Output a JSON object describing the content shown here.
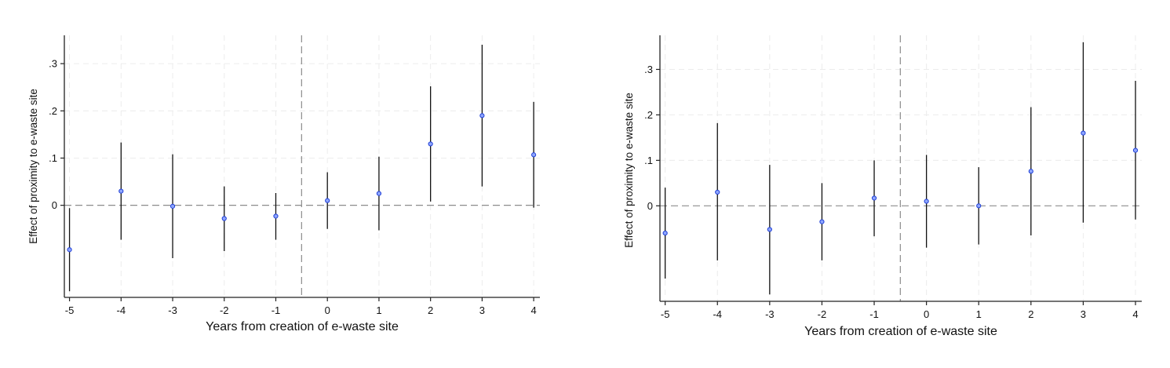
{
  "chart_data": [
    {
      "type": "scatter",
      "chart_subtype": "coefficient plot with 95% confidence intervals",
      "xlabel": "Years from creation of e-waste site",
      "ylabel": "Effect of proximity to e-waste site",
      "x_ticks": [
        "-5",
        "-4",
        "-3",
        "-2",
        "-1",
        "0",
        "1",
        "2",
        "3",
        "4"
      ],
      "y_ticks": [
        {
          "value": 0,
          "label": "0"
        },
        {
          "value": 0.1,
          "label": ".1"
        },
        {
          "value": 0.2,
          "label": ".2"
        },
        {
          "value": 0.3,
          "label": ".3"
        }
      ],
      "xlim": [
        -5.1,
        4.12
      ],
      "ylim": [
        -0.195,
        0.36
      ],
      "reference_line_y": 0,
      "event_line_x": -0.5,
      "grid": true,
      "marker_color": "#1f3fd6",
      "points": [
        {
          "x": -5,
          "y": -0.094,
          "lo": -0.182,
          "hi": -0.006
        },
        {
          "x": -4,
          "y": 0.03,
          "lo": -0.073,
          "hi": 0.133
        },
        {
          "x": -3,
          "y": -0.002,
          "lo": -0.112,
          "hi": 0.108
        },
        {
          "x": -2,
          "y": -0.028,
          "lo": -0.097,
          "hi": 0.04
        },
        {
          "x": -1,
          "y": -0.023,
          "lo": -0.073,
          "hi": 0.026
        },
        {
          "x": 0,
          "y": 0.01,
          "lo": -0.05,
          "hi": 0.07
        },
        {
          "x": 1,
          "y": 0.025,
          "lo": -0.053,
          "hi": 0.103
        },
        {
          "x": 2,
          "y": 0.13,
          "lo": 0.008,
          "hi": 0.252
        },
        {
          "x": 3,
          "y": 0.19,
          "lo": 0.04,
          "hi": 0.34
        },
        {
          "x": 4,
          "y": 0.107,
          "lo": -0.005,
          "hi": 0.219
        }
      ]
    },
    {
      "type": "scatter",
      "chart_subtype": "coefficient plot with 95% confidence intervals",
      "xlabel": "Years from creation of e-waste site",
      "ylabel": "Effect of proximity to e-waste site",
      "x_ticks": [
        "-5",
        "-4",
        "-3",
        "-2",
        "-1",
        "0",
        "1",
        "2",
        "3",
        "4"
      ],
      "y_ticks": [
        {
          "value": 0,
          "label": "0"
        },
        {
          "value": 0.1,
          "label": ".1"
        },
        {
          "value": 0.2,
          "label": ".2"
        },
        {
          "value": 0.3,
          "label": ".3"
        }
      ],
      "xlim": [
        -5.1,
        4.12
      ],
      "ylim": [
        -0.21,
        0.375
      ],
      "reference_line_y": 0,
      "event_line_x": -0.5,
      "grid": true,
      "marker_color": "#1f3fd6",
      "points": [
        {
          "x": -5,
          "y": -0.06,
          "lo": -0.16,
          "hi": 0.04
        },
        {
          "x": -4,
          "y": 0.03,
          "lo": -0.12,
          "hi": 0.182
        },
        {
          "x": -3,
          "y": -0.052,
          "lo": -0.195,
          "hi": 0.09
        },
        {
          "x": -2,
          "y": -0.035,
          "lo": -0.12,
          "hi": 0.05
        },
        {
          "x": -1,
          "y": 0.017,
          "lo": -0.067,
          "hi": 0.1
        },
        {
          "x": 0,
          "y": 0.01,
          "lo": -0.092,
          "hi": 0.112
        },
        {
          "x": 1,
          "y": 0.0,
          "lo": -0.085,
          "hi": 0.085
        },
        {
          "x": 2,
          "y": 0.076,
          "lo": -0.065,
          "hi": 0.217
        },
        {
          "x": 3,
          "y": 0.16,
          "lo": -0.037,
          "hi": 0.36
        },
        {
          "x": 4,
          "y": 0.122,
          "lo": -0.03,
          "hi": 0.275
        }
      ]
    }
  ]
}
